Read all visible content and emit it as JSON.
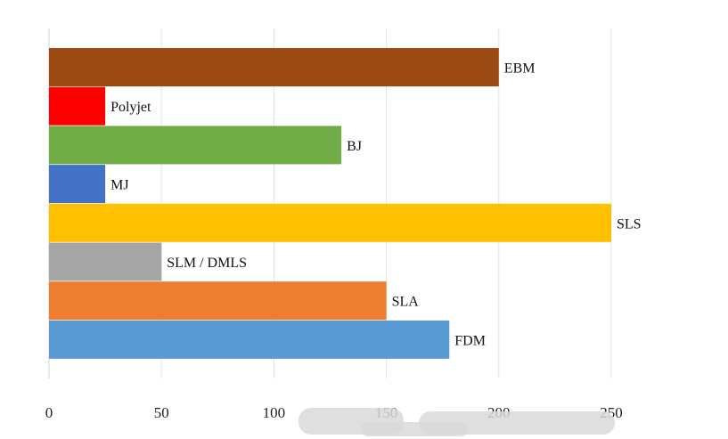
{
  "chart_data": {
    "type": "bar",
    "orientation": "horizontal",
    "title": "",
    "xlabel": "",
    "ylabel": "",
    "xlim": [
      0,
      250
    ],
    "ticks": [
      0,
      50,
      100,
      150,
      200,
      250
    ],
    "grid": true,
    "legend": "none",
    "categories": [
      "EBM",
      "Polyjet",
      "BJ",
      "MJ",
      "SLS",
      "SLM / DMLS",
      "SLA",
      "FDM"
    ],
    "values": [
      200,
      25,
      130,
      25,
      250,
      50,
      150,
      178
    ],
    "colors": [
      "#9C4A14",
      "#FF0000",
      "#70AD47",
      "#4472C4",
      "#FFC000",
      "#A5A5A5",
      "#ED7D31",
      "#5B9BD5"
    ]
  }
}
